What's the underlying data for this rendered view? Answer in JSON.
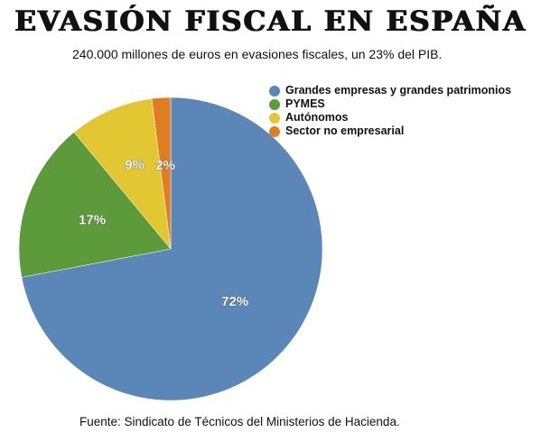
{
  "title": "EVASIÓN FISCAL EN ESPAÑA",
  "subtitle": "240.000 millones de euros en evasiones fiscales, un 23% del PIB.",
  "source": "Fuente: Sindicato de Técnicos del Ministerios de Hacienda.",
  "chart_data": {
    "type": "pie",
    "title": "EVASIÓN FISCAL EN ESPAÑA",
    "legend_position": "top-right",
    "slices": [
      {
        "label": "Grandes empresas y grandes patrimonios",
        "value": 72,
        "display": "72%",
        "color": "#5a86b8"
      },
      {
        "label": "PYMES",
        "value": 17,
        "display": "17%",
        "color": "#5c9a3a"
      },
      {
        "label": "Autónomos",
        "value": 9,
        "display": "9%",
        "color": "#e2c733"
      },
      {
        "label": "Sector no empresarial",
        "value": 2,
        "display": "2%",
        "color": "#e07d23"
      }
    ]
  }
}
